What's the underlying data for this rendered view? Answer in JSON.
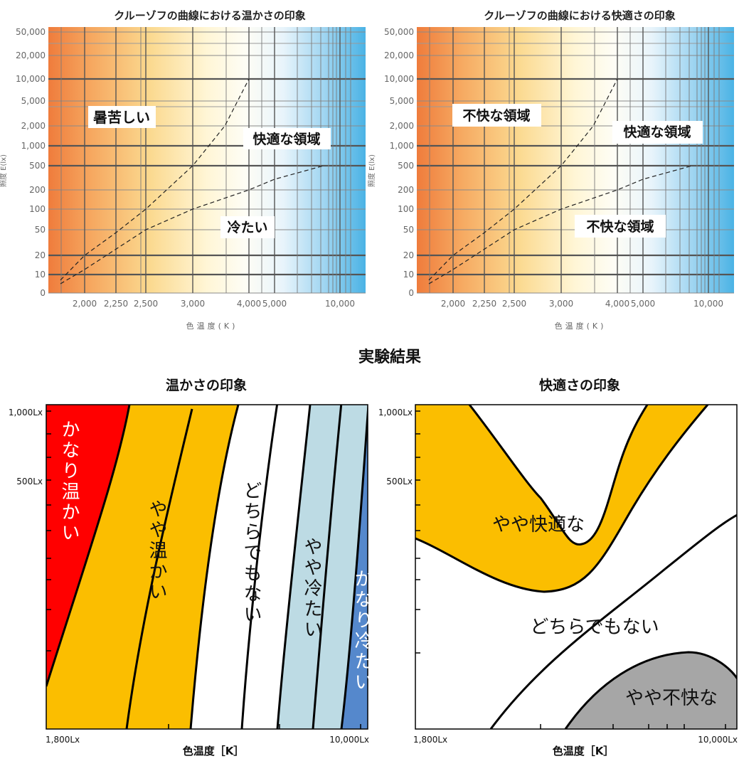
{
  "main_title": "実験結果",
  "chart_data": [
    {
      "type": "line",
      "title": "クルーゾフの曲線における温かさの印象",
      "xlabel": "色温度(K)",
      "ylabel": "照度 E(lx)",
      "x_scale": "reciprocal",
      "y_scale": "log",
      "x_ticks": [
        "2,000",
        "2,250",
        "2,500",
        "3,000",
        "4,000",
        "5,000",
        "10,000"
      ],
      "y_ticks": [
        "0",
        "10",
        "20",
        "50",
        "100",
        "200",
        "500",
        "1,000",
        "2,000",
        "5,000",
        "10,000",
        "20,000",
        "50,000"
      ],
      "series": [
        {
          "x": [
            1700,
            2000,
            2250,
            2500,
            3000,
            3500,
            4000
          ],
          "y": [
            7,
            20,
            45,
            100,
            500,
            2000,
            10000
          ]
        },
        {
          "x": [
            1700,
            2000,
            2500,
            3000,
            4000,
            5000,
            8000
          ],
          "y": [
            5,
            12,
            50,
            100,
            200,
            300,
            500
          ]
        }
      ],
      "region_labels": [
        "暑苦しい",
        "快適な領域",
        "冷たい"
      ],
      "background": "gradient warm orange to cool blue",
      "grid": true
    },
    {
      "type": "line",
      "title": "クルーゾフの曲線における快適さの印象",
      "xlabel": "色温度(K)",
      "ylabel": "照度 E(lx)",
      "x_scale": "reciprocal",
      "y_scale": "log",
      "x_ticks": [
        "2,000",
        "2,250",
        "2,500",
        "3,000",
        "4,000",
        "5,000",
        "10,000"
      ],
      "y_ticks": [
        "0",
        "10",
        "20",
        "50",
        "100",
        "200",
        "500",
        "1,000",
        "2,000",
        "5,000",
        "10,000",
        "20,000",
        "50,000"
      ],
      "series": [
        {
          "x": [
            1700,
            2000,
            2250,
            2500,
            3000,
            3500,
            4000
          ],
          "y": [
            7,
            20,
            45,
            100,
            500,
            2000,
            10000
          ]
        },
        {
          "x": [
            1700,
            2000,
            2500,
            3000,
            4000,
            5000,
            8000
          ],
          "y": [
            5,
            12,
            50,
            100,
            200,
            300,
            500
          ]
        }
      ],
      "region_labels": [
        "不快な領域",
        "快適な領域",
        "不快な領域"
      ],
      "background": "gradient warm orange to cool blue",
      "grid": true
    },
    {
      "type": "area",
      "title": "温かさの印象",
      "xlabel": "色温度［K］",
      "x_ticks": [
        "1,800Lx",
        "10,000Lx"
      ],
      "y_ticks": [
        "1,000Lx",
        "500Lx"
      ],
      "regions": [
        {
          "label": "かなり温かい",
          "color": "#ff0000"
        },
        {
          "label": "やや温かい",
          "color": "#fbbe00"
        },
        {
          "label": "どちらでもない",
          "color": "#ffffff"
        },
        {
          "label": "やや冷たい",
          "color": "#bddbe4"
        },
        {
          "label": "かなり冷たい",
          "color": "#5588cc"
        }
      ]
    },
    {
      "type": "area",
      "title": "快適さの印象",
      "xlabel": "色温度［K］",
      "x_ticks": [
        "1,800Lx",
        "10,000Lx"
      ],
      "y_ticks": [
        "1,000Lx",
        "500Lx"
      ],
      "regions": [
        {
          "label": "やや快適な",
          "color": "#fbbe00"
        },
        {
          "label": "どちらでもない",
          "color": "#ffffff"
        },
        {
          "label": "やや不快な",
          "color": "#a6a6a6"
        }
      ]
    }
  ]
}
